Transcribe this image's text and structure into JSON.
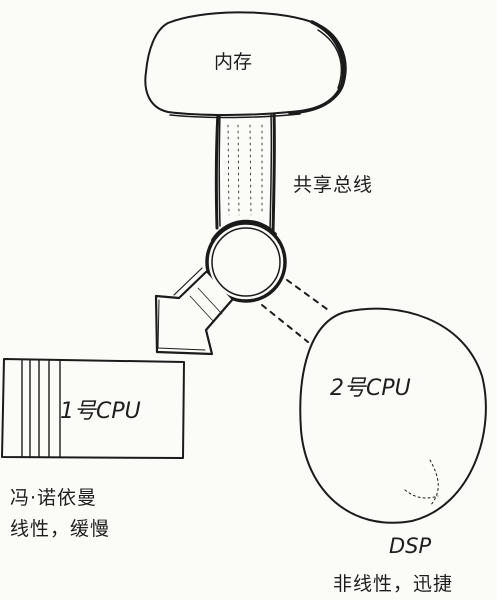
{
  "labels": {
    "memory": "内存",
    "shared_bus": "共享总线",
    "cpu1": "1号CPU",
    "cpu2": "2号CPU",
    "von_neumann": "冯·诺依曼",
    "von_neumann_traits": "线性，缓慢",
    "dsp": "DSP",
    "dsp_traits": "非线性，迅捷"
  },
  "colors": {
    "ink": "#1b1b1b",
    "paper": "#fbfbf8"
  }
}
